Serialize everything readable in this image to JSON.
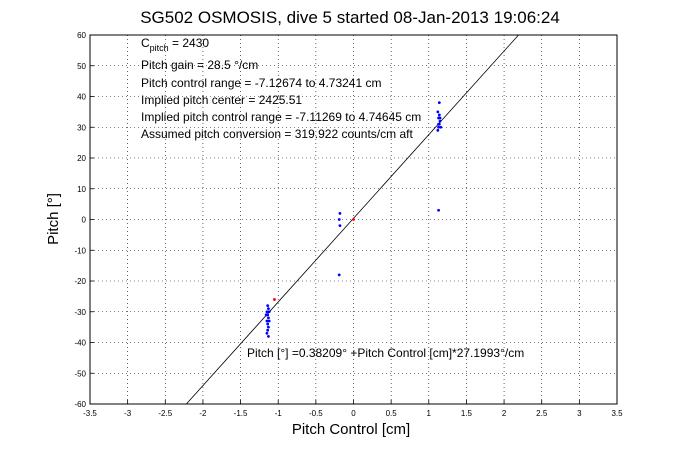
{
  "chart_data": {
    "type": "scatter",
    "title": "SG502 OSMOSIS, dive 5 started 08-Jan-2013 19:06:24",
    "xlabel": "Pitch Control [cm]",
    "ylabel": "Pitch [°]",
    "xlim": [
      -3.5,
      3.5
    ],
    "ylim": [
      -60,
      60
    ],
    "xticks": [
      "-3.5",
      "-3",
      "-2.5",
      "-2",
      "-1.5",
      "-1",
      "-0.5",
      "0",
      "0.5",
      "1",
      "1.5",
      "2",
      "2.5",
      "3",
      "3.5"
    ],
    "yticks": [
      "60",
      "50",
      "40",
      "30",
      "20",
      "10",
      "0",
      "-10",
      "-20",
      "-30",
      "-40",
      "-50",
      "-60"
    ],
    "grid": true,
    "annotations": {
      "c_pitch_prefix": "C",
      "c_pitch_sub": "pitch",
      "c_pitch_value": " = 2430",
      "pitch_gain": "Pitch gain = 28.5 °/cm",
      "pitch_control_range": "Pitch control range = -7.12674 to 4.73241 cm",
      "implied_pitch_center": "Implied pitch center = 2425.51",
      "implied_pitch_control_range": "Implied pitch control range = -7.11269 to 4.74645 cm",
      "assumed_pitch_conversion": "Assumed pitch conversion = 319.922 counts/cm aft"
    },
    "fit_label": "Pitch [°] =0.38209° +Pitch Control [cm]*27.1993°/cm",
    "fit_line": {
      "intercept": 0.38209,
      "slope": 27.1993
    },
    "series": [
      {
        "color": "#0000ff",
        "points": [
          [
            -1.14,
            -28
          ],
          [
            -1.13,
            -29
          ],
          [
            -1.15,
            -30
          ],
          [
            -1.14,
            -31
          ],
          [
            -1.13,
            -32
          ],
          [
            -1.15,
            -33
          ],
          [
            -1.14,
            -34
          ],
          [
            -1.13,
            -35
          ],
          [
            -1.14,
            -36
          ],
          [
            -1.15,
            -37
          ],
          [
            -1.13,
            -38
          ],
          [
            -1.12,
            -30
          ],
          [
            -1.16,
            -31
          ],
          [
            -1.12,
            -33
          ],
          [
            -0.18,
            2
          ],
          [
            -0.19,
            0
          ],
          [
            -0.18,
            -2
          ],
          [
            -0.19,
            -18
          ],
          [
            1.12,
            29
          ],
          [
            1.13,
            30
          ],
          [
            1.14,
            31
          ],
          [
            1.15,
            32
          ],
          [
            1.13,
            33
          ],
          [
            1.14,
            34
          ],
          [
            1.12,
            35
          ],
          [
            1.15,
            33
          ],
          [
            1.13,
            31
          ],
          [
            1.16,
            30
          ],
          [
            1.14,
            38
          ],
          [
            1.13,
            3
          ]
        ]
      },
      {
        "color": "#ff0000",
        "points": [
          [
            0.0,
            0.0
          ],
          [
            -1.05,
            -26
          ]
        ]
      }
    ]
  }
}
